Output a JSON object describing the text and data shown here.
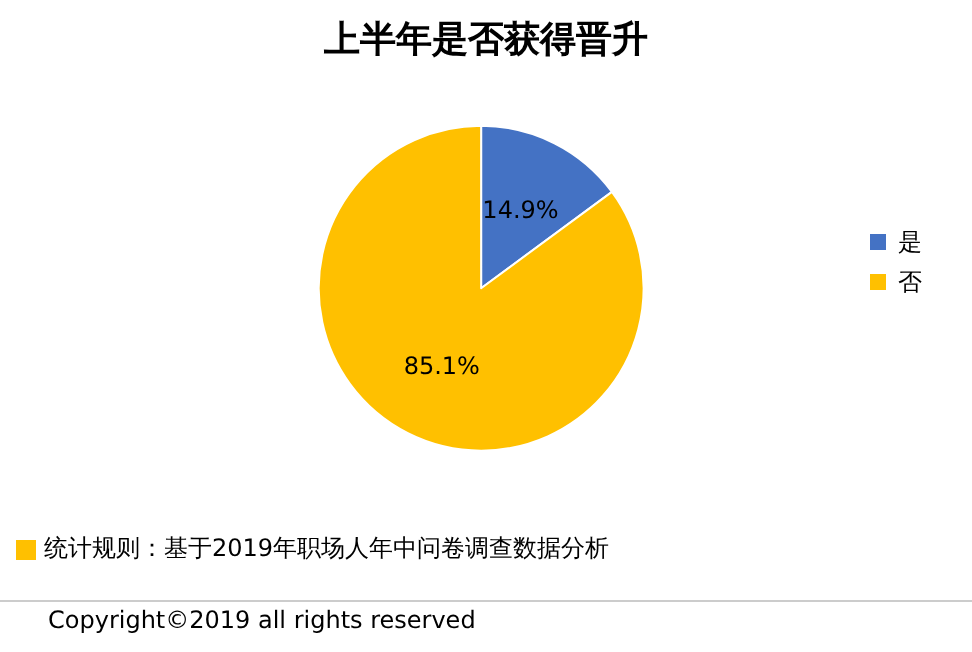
{
  "chart_data": {
    "type": "pie",
    "title": "上半年是否获得晋升",
    "categories": [
      "是",
      "否"
    ],
    "values": [
      14.9,
      85.1
    ],
    "colors": [
      "#4472c4",
      "#ffc000"
    ],
    "value_labels": [
      "14.9%",
      "85.1%"
    ],
    "legend": "right",
    "annotations": [
      "统计规则：基于2019年职场人年中问卷调查数据分析",
      "Copyright©2019 all rights reserved"
    ]
  }
}
